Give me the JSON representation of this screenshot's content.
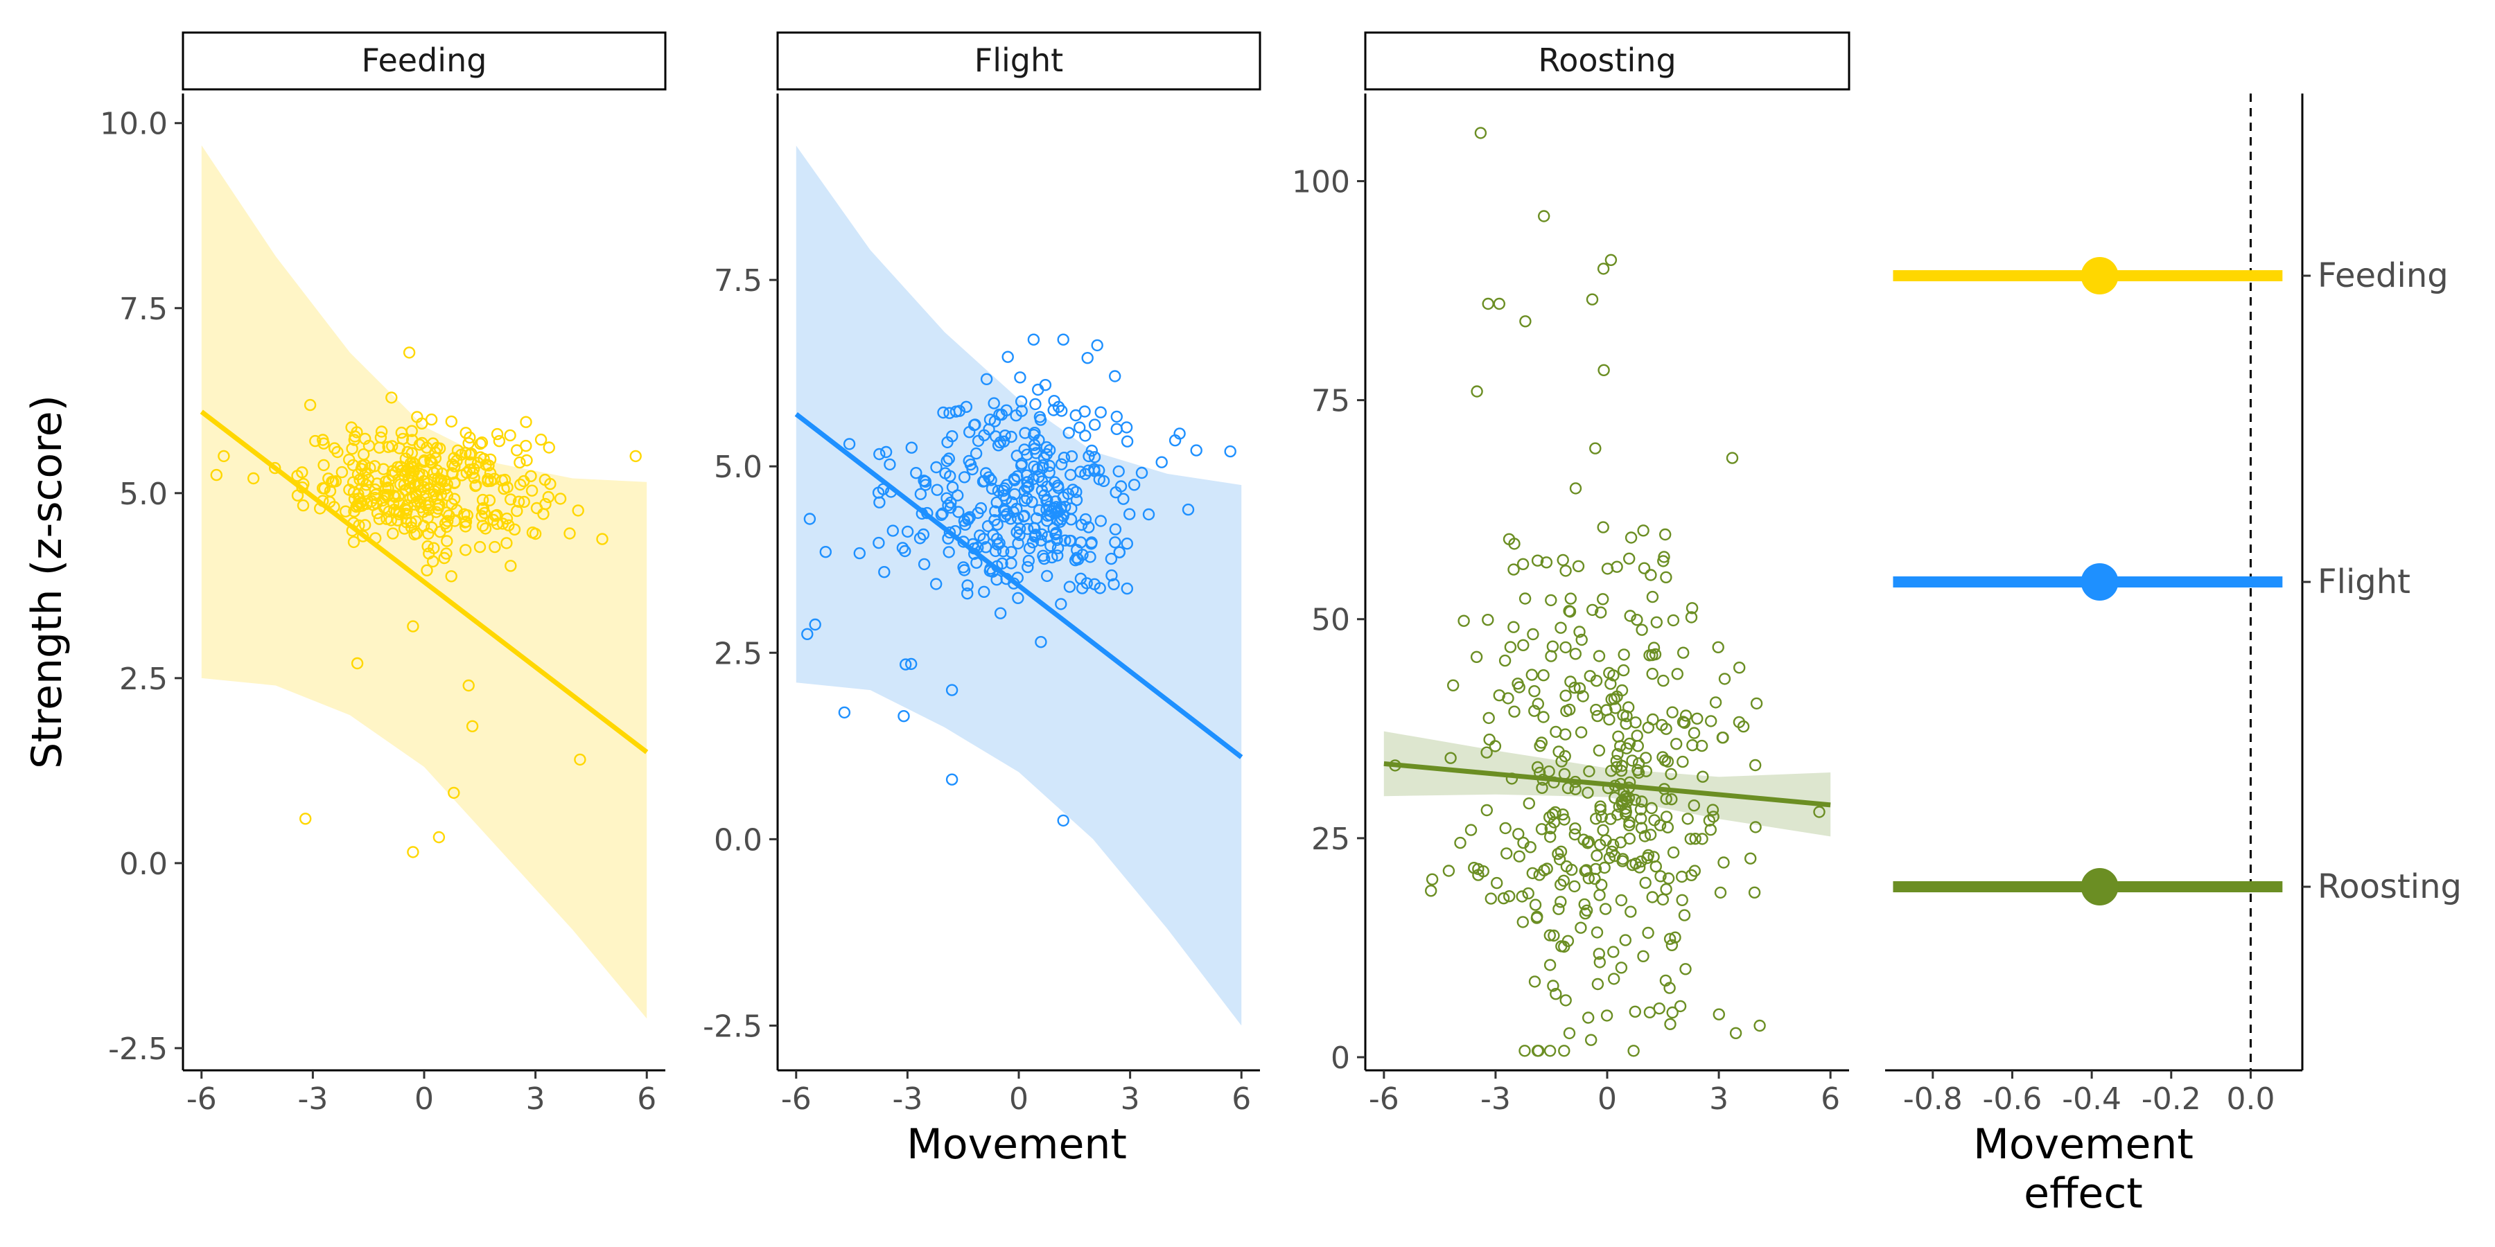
{
  "figure": {
    "y_axis_label": "Strength (z-score)",
    "x_axis_label": "Movement",
    "effect_axis_label_line1": "Movement",
    "effect_axis_label_line2": "effect"
  },
  "chart_data": [
    {
      "type": "scatter",
      "facet": "Feeding",
      "color": "#FFD700",
      "band_color": "#FFF5C6",
      "xlim": [
        -6.5,
        6.5
      ],
      "ylim": [
        -2.8,
        10.4
      ],
      "x_ticks": [
        -6,
        -3,
        0,
        3,
        6
      ],
      "x_tick_labels": [
        "-6",
        "-3",
        "0",
        "3",
        "6"
      ],
      "y_ticks": [
        -2.5,
        0,
        2.5,
        5,
        7.5,
        10
      ],
      "y_tick_labels": [
        "-2.5",
        "0.0",
        "2.5",
        "5.0",
        "7.5",
        "10.0"
      ],
      "fit": {
        "x": [
          -6,
          6
        ],
        "y": [
          6.1,
          1.5
        ]
      },
      "band": {
        "x": [
          -6,
          -4,
          -2,
          0,
          2,
          4,
          6
        ],
        "upper": [
          9.7,
          8.2,
          6.9,
          5.9,
          5.4,
          5.2,
          5.15
        ],
        "lower": [
          2.5,
          2.4,
          2.0,
          1.3,
          0.2,
          -0.9,
          -2.1
        ]
      },
      "cluster": {
        "center_x": 0,
        "center_y": 5.1,
        "sd_x": 1.6,
        "sd_y": 0.4,
        "count": 340
      },
      "outliers": [
        [
          -5.4,
          5.5
        ],
        [
          -4.6,
          5.2
        ],
        [
          -3.2,
          0.6
        ],
        [
          -0.3,
          0.15
        ],
        [
          0.4,
          0.35
        ],
        [
          0.8,
          0.95
        ],
        [
          1.3,
          1.85
        ],
        [
          1.2,
          2.4
        ],
        [
          4.2,
          1.4
        ],
        [
          5.7,
          5.5
        ],
        [
          -0.4,
          6.9
        ],
        [
          -1.8,
          2.7
        ],
        [
          -0.3,
          3.2
        ]
      ]
    },
    {
      "type": "scatter",
      "facet": "Flight",
      "color": "#1E90FF",
      "band_color": "#D2E7FB",
      "xlim": [
        -6.5,
        6.5
      ],
      "ylim": [
        -3.1,
        10.0
      ],
      "x_ticks": [
        -6,
        -3,
        0,
        3,
        6
      ],
      "x_tick_labels": [
        "-6",
        "-3",
        "0",
        "3",
        "6"
      ],
      "y_ticks": [
        -2.5,
        0,
        2.5,
        5,
        7.5
      ],
      "y_tick_labels": [
        "-2.5",
        "0.0",
        "2.5",
        "5.0",
        "7.5"
      ],
      "fit": {
        "x": [
          -6,
          6
        ],
        "y": [
          5.7,
          1.1
        ]
      },
      "band": {
        "x": [
          -6,
          -4,
          -2,
          0,
          2,
          4,
          6
        ],
        "upper": [
          9.3,
          7.9,
          6.8,
          5.9,
          5.2,
          4.9,
          4.75
        ],
        "lower": [
          2.1,
          2.0,
          1.5,
          0.9,
          0.0,
          -1.2,
          -2.5
        ]
      },
      "cluster": {
        "center_x": 0,
        "center_y": 4.6,
        "sd_x": 1.7,
        "sd_y": 0.75,
        "count": 340
      },
      "outliers": [
        [
          -5.7,
          2.75
        ],
        [
          -4.7,
          1.7
        ],
        [
          -3.1,
          1.65
        ],
        [
          -1.8,
          0.8
        ],
        [
          1.2,
          0.25
        ],
        [
          -1.8,
          2.0
        ],
        [
          5.7,
          5.2
        ],
        [
          1.2,
          6.7
        ],
        [
          0.4,
          6.7
        ],
        [
          -2.9,
          2.35
        ]
      ]
    },
    {
      "type": "scatter",
      "facet": "Roosting",
      "color": "#6B8E23",
      "band_color": "#DDE6CF",
      "xlim": [
        -6.5,
        6.5
      ],
      "ylim": [
        -1.5,
        110
      ],
      "x_ticks": [
        -6,
        -3,
        0,
        3,
        6
      ],
      "x_tick_labels": [
        "-6",
        "-3",
        "0",
        "3",
        "6"
      ],
      "y_ticks": [
        0,
        25,
        50,
        75,
        100
      ],
      "y_tick_labels": [
        "0",
        "25",
        "50",
        "75",
        "100"
      ],
      "fit": {
        "x": [
          -6,
          6
        ],
        "y": [
          33.5,
          28.8
        ]
      },
      "band": {
        "x": [
          -6,
          -3,
          0,
          3,
          6
        ],
        "upper": [
          37.2,
          35.0,
          33.0,
          32.0,
          32.5
        ],
        "lower": [
          29.8,
          30.0,
          29.7,
          27.2,
          25.2
        ]
      },
      "cluster": {
        "center_x": 0,
        "center_y": 30,
        "sd_x": 1.8,
        "sd_y": 15,
        "count": 380
      },
      "outliers": [
        [
          -3.4,
          105.5
        ],
        [
          -1.7,
          96
        ],
        [
          0.1,
          91
        ],
        [
          -0.1,
          90
        ],
        [
          -3.2,
          86
        ],
        [
          -2.9,
          86
        ],
        [
          -0.4,
          86.5
        ],
        [
          -2.2,
          84
        ],
        [
          -3.5,
          76
        ],
        [
          -4.7,
          20.3
        ],
        [
          -5.7,
          33.3
        ],
        [
          4.1,
          3.6
        ],
        [
          5.7,
          28
        ]
      ]
    },
    {
      "type": "dot",
      "panel": "Movement effect",
      "xlim": [
        -0.92,
        0.13
      ],
      "x_ticks": [
        -0.8,
        -0.6,
        -0.4,
        -0.2,
        0.0
      ],
      "x_tick_labels": [
        "-0.8",
        "-0.6",
        "-0.4",
        "-0.2",
        "0.0"
      ],
      "reference_line_x": 0,
      "categories": [
        "Feeding",
        "Flight",
        "Roosting"
      ],
      "series": [
        {
          "name": "Feeding",
          "estimate": -0.38,
          "lower": -0.9,
          "upper": 0.08,
          "color": "#FFD700"
        },
        {
          "name": "Flight",
          "estimate": -0.38,
          "lower": -0.9,
          "upper": 0.08,
          "color": "#1E90FF"
        },
        {
          "name": "Roosting",
          "estimate": -0.38,
          "lower": -0.9,
          "upper": 0.08,
          "color": "#6B8E23"
        }
      ]
    }
  ]
}
